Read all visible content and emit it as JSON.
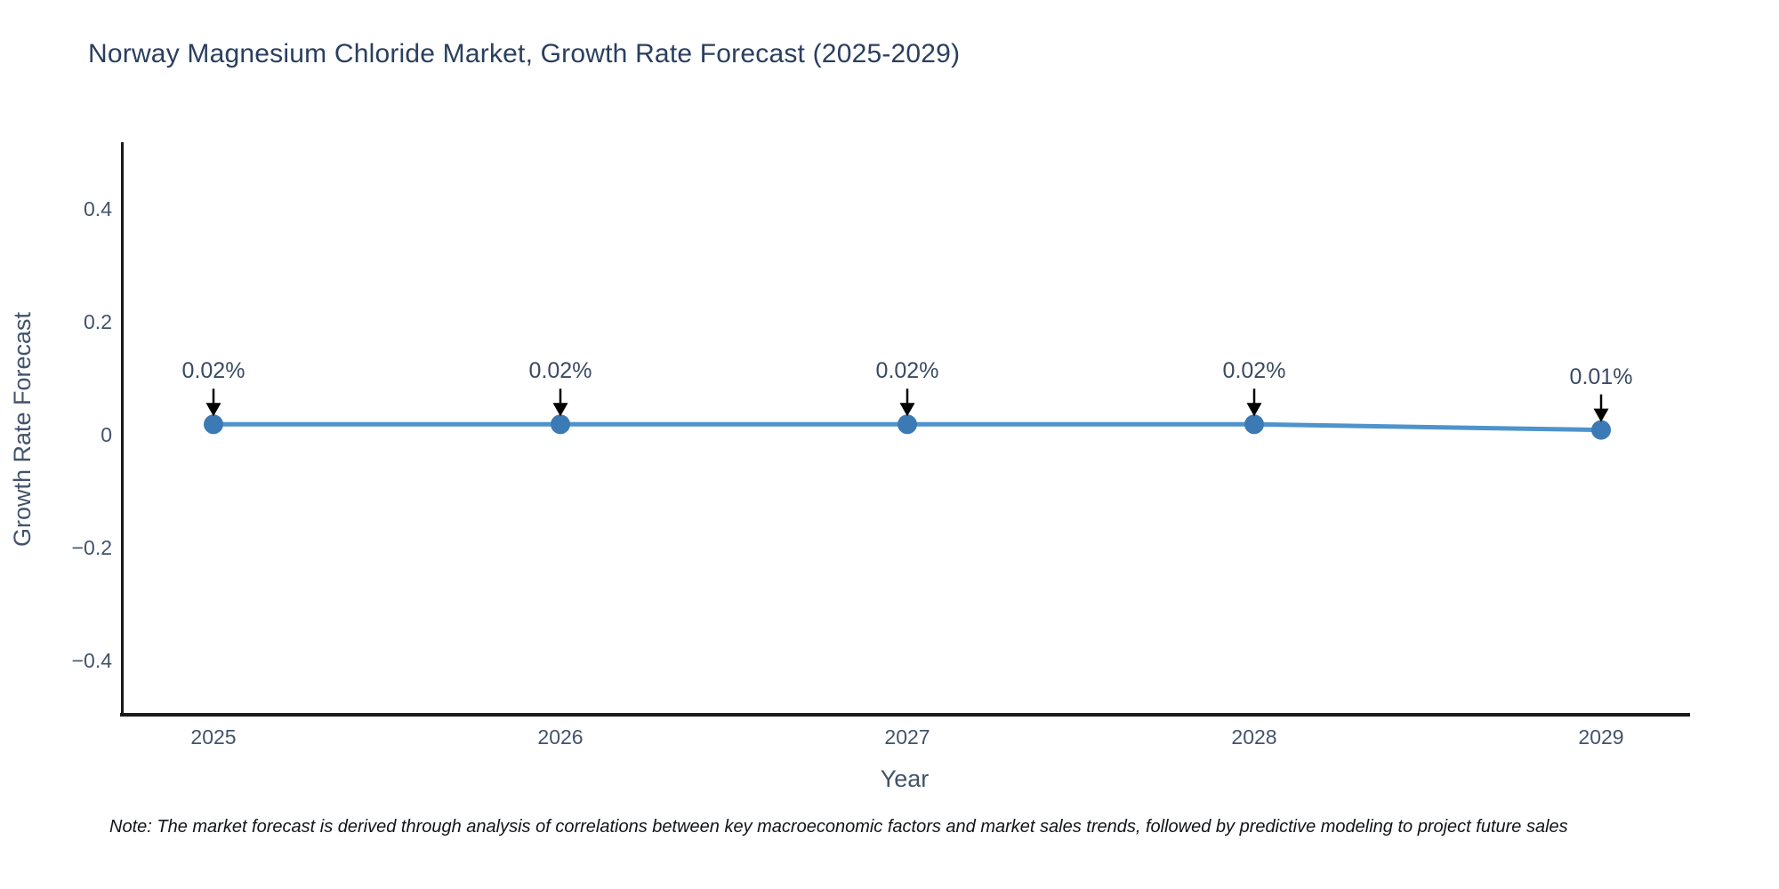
{
  "title": "Norway Magnesium Chloride Market, Growth Rate Forecast (2025-2029)",
  "note": "Note: The market forecast is derived through analysis of correlations between key macroeconomic factors and market sales trends, followed by predictive modeling to project future sales",
  "chart_data": {
    "type": "line",
    "title": "Norway Magnesium Chloride Market, Growth Rate Forecast (2025-2029)",
    "xlabel": "Year",
    "ylabel": "Growth Rate Forecast",
    "categories": [
      "2025",
      "2026",
      "2027",
      "2028",
      "2029"
    ],
    "x": [
      2025,
      2026,
      2027,
      2028,
      2029
    ],
    "values": [
      0.02,
      0.02,
      0.02,
      0.02,
      0.01
    ],
    "point_labels": [
      "0.02%",
      "0.02%",
      "0.02%",
      "0.02%",
      "0.01%"
    ],
    "yticks": [
      0.4,
      0.2,
      0,
      -0.2,
      -0.4
    ],
    "ytick_labels": [
      "0.4",
      "0.2",
      "0",
      "−0.2",
      "−0.4"
    ],
    "ylim": [
      -0.5,
      0.52
    ],
    "grid": false,
    "legend": "none",
    "colors": {
      "line": "#4e93cc",
      "marker": "#3c7ab5",
      "arrow": "#000000",
      "axis_line": "#1a1a1a"
    }
  }
}
